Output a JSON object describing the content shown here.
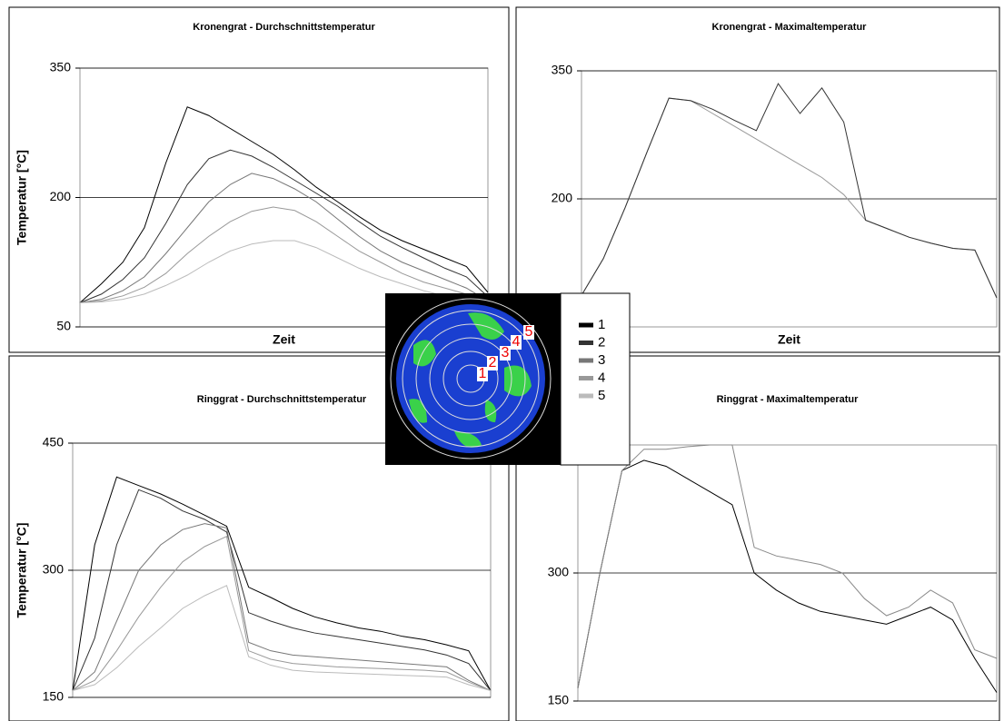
{
  "chart_data": [
    {
      "type": "line",
      "title": "Kronengrat - Durchschnittstemperatur",
      "xlabel": "Zeit",
      "ylabel": "Temperatur [°C]",
      "categories": [
        null,
        null,
        null,
        null,
        null,
        null,
        null,
        null,
        null,
        null,
        null,
        null,
        null,
        null,
        null,
        null,
        null,
        null,
        null,
        null
      ],
      "ylim": [
        50,
        350
      ],
      "yticks": [
        50,
        200,
        350
      ],
      "grid": true,
      "series": [
        {
          "name": "1",
          "color": "#000000",
          "values": [
            78,
            100,
            125,
            165,
            240,
            305,
            295,
            280,
            265,
            250,
            232,
            212,
            195,
            178,
            162,
            150,
            140,
            130,
            120,
            90
          ]
        },
        {
          "name": "2",
          "color": "#333333",
          "values": [
            78,
            88,
            105,
            130,
            170,
            215,
            245,
            255,
            248,
            235,
            220,
            205,
            190,
            172,
            155,
            142,
            130,
            118,
            108,
            85
          ]
        },
        {
          "name": "3",
          "color": "#777777",
          "values": [
            78,
            82,
            92,
            108,
            135,
            165,
            195,
            215,
            228,
            222,
            210,
            195,
            175,
            155,
            138,
            125,
            115,
            105,
            95,
            80
          ]
        },
        {
          "name": "4",
          "color": "#999999",
          "values": [
            78,
            80,
            86,
            96,
            112,
            135,
            155,
            172,
            184,
            189,
            185,
            172,
            155,
            138,
            125,
            112,
            102,
            95,
            88,
            78
          ]
        },
        {
          "name": "5",
          "color": "#bbbbbb",
          "values": [
            78,
            79,
            82,
            88,
            98,
            110,
            125,
            138,
            146,
            150,
            150,
            142,
            130,
            118,
            108,
            100,
            92,
            86,
            80,
            75
          ]
        }
      ]
    },
    {
      "type": "line",
      "title": "Kronengrat - Maximaltemperatur",
      "xlabel": "Zeit",
      "categories": [
        null,
        null,
        null,
        null,
        null,
        null,
        null,
        null,
        null,
        null,
        null,
        null,
        null,
        null,
        null,
        null,
        null,
        null,
        null,
        null
      ],
      "ylim": [
        50,
        350
      ],
      "yticks": [
        200,
        350
      ],
      "grid": true,
      "series": [
        {
          "color": "#999999",
          "values": [
            87,
            130,
            190,
            255,
            318,
            315,
            300,
            285,
            270,
            255,
            240,
            225,
            205,
            175,
            165,
            155,
            148,
            142,
            140,
            84
          ]
        },
        {
          "color": "#333333",
          "values": [
            87,
            130,
            190,
            255,
            318,
            315,
            305,
            292,
            280,
            335,
            300,
            330,
            290,
            175,
            165,
            155,
            148,
            142,
            140,
            84
          ]
        }
      ]
    },
    {
      "type": "line",
      "title": "Ringgrat - Durchschnittstemperatur",
      "ylabel": "Temperatur [°C]",
      "categories": [
        null,
        null,
        null,
        null,
        null,
        null,
        null,
        null,
        null,
        null,
        null,
        null,
        null,
        null,
        null,
        null,
        null,
        null,
        null,
        null
      ],
      "ylim": [
        150,
        450
      ],
      "yticks": [
        150,
        300,
        450
      ],
      "grid": true,
      "series": [
        {
          "color": "#000000",
          "values": [
            158,
            330,
            410,
            400,
            390,
            378,
            365,
            352,
            280,
            268,
            255,
            245,
            238,
            232,
            228,
            222,
            218,
            212,
            205,
            158
          ]
        },
        {
          "color": "#333333",
          "values": [
            158,
            220,
            330,
            395,
            385,
            370,
            360,
            345,
            250,
            240,
            232,
            226,
            222,
            218,
            214,
            210,
            206,
            200,
            190,
            158
          ]
        },
        {
          "color": "#777777",
          "values": [
            158,
            180,
            240,
            300,
            330,
            348,
            355,
            350,
            215,
            205,
            200,
            198,
            196,
            194,
            192,
            190,
            188,
            186,
            170,
            158
          ]
        },
        {
          "color": "#999999",
          "values": [
            158,
            170,
            205,
            245,
            280,
            310,
            328,
            340,
            205,
            195,
            190,
            188,
            186,
            185,
            184,
            183,
            182,
            180,
            168,
            158
          ]
        },
        {
          "color": "#bbbbbb",
          "values": [
            158,
            165,
            185,
            210,
            232,
            255,
            270,
            282,
            198,
            188,
            182,
            180,
            179,
            178,
            177,
            176,
            175,
            174,
            165,
            158
          ]
        }
      ]
    },
    {
      "type": "line",
      "title": "Ringgrat - Maximaltemperatur",
      "categories": [
        null,
        null,
        null,
        null,
        null,
        null,
        null,
        null,
        null,
        null,
        null,
        null,
        null,
        null,
        null,
        null,
        null,
        null,
        null,
        null
      ],
      "ylim": [
        150,
        450
      ],
      "yticks": [
        150,
        300
      ],
      "grid": true,
      "series": [
        {
          "color": "#000000",
          "values": [
            165,
            300,
            420,
            432,
            425,
            410,
            395,
            380,
            300,
            280,
            265,
            255,
            250,
            245,
            240,
            250,
            260,
            245,
            200,
            160
          ]
        },
        {
          "color": "#888888",
          "values": [
            165,
            300,
            420,
            445,
            445,
            448,
            450,
            450,
            330,
            320,
            315,
            310,
            300,
            270,
            250,
            260,
            280,
            265,
            210,
            200
          ]
        }
      ]
    }
  ]
}
